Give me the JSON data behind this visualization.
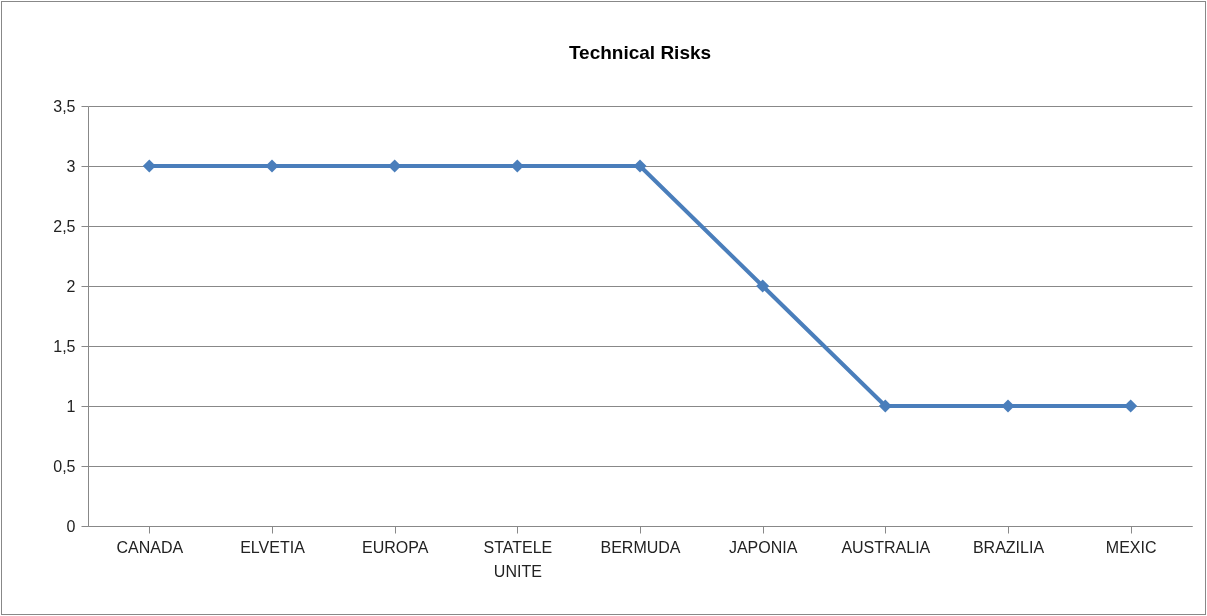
{
  "chart_data": {
    "type": "line",
    "title": "Technical Risks",
    "categories": [
      "CANADA",
      "ELVETIA",
      "EUROPA",
      "STATELE UNITE",
      "BERMUDA",
      "JAPONIA",
      "AUSTRALIA",
      "BRAZILIA",
      "MEXIC"
    ],
    "series": [
      {
        "color": "#4a7ebb",
        "values": [
          3,
          3,
          3,
          3,
          3,
          2,
          1,
          1,
          1
        ]
      }
    ],
    "ylim": [
      0,
      3.5
    ],
    "yticks": [
      0,
      {
        "value": 0.5,
        "label": "0,5"
      },
      1,
      {
        "value": 1.5,
        "label": "1,5"
      },
      2,
      {
        "value": 2.5,
        "label": "2,5"
      },
      3,
      {
        "value": 3.5,
        "label": "3,5"
      }
    ],
    "grid": "y",
    "legend": false,
    "marker": "diamond",
    "line_style": "solid"
  }
}
